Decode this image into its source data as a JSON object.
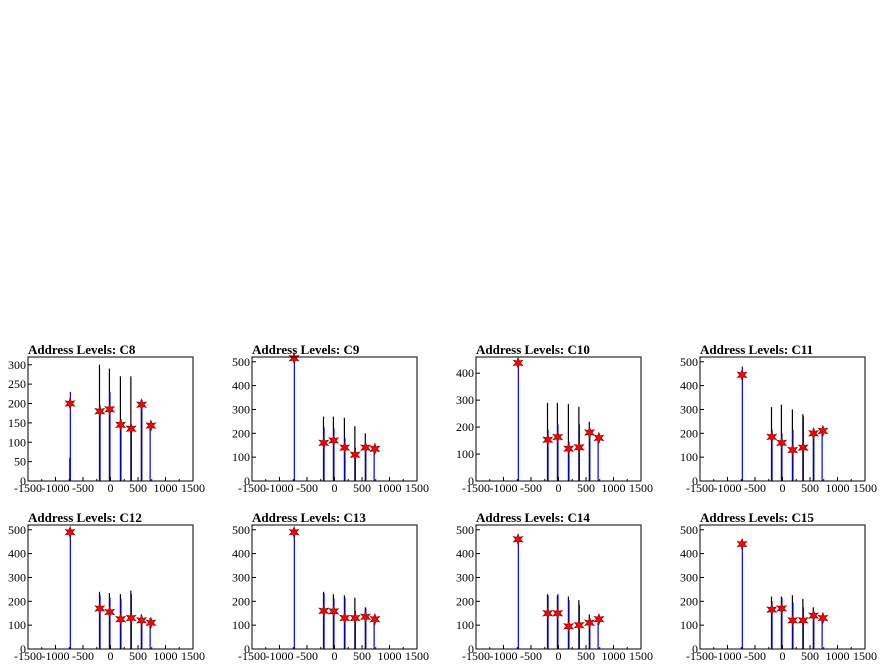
{
  "chart_data": [
    {
      "type": "bar",
      "title": "Address Levels: C8",
      "xlim": [
        -1500,
        1500
      ],
      "ylim": [
        0,
        320
      ],
      "xticks": [
        -1500,
        -1000,
        -500,
        0,
        500,
        1000,
        1500
      ],
      "xtick_labels": [
        "-1500",
        "-1000",
        "-500",
        "0",
        "500",
        "1000",
        "1500"
      ],
      "yticks": [
        0,
        50,
        100,
        150,
        200,
        250,
        300
      ],
      "ytick_labels": [
        "0",
        "50",
        "100",
        "150",
        "200",
        "250",
        "300"
      ],
      "series": [
        {
          "type": "bar",
          "color": "#000000",
          "x": [
            -740,
            -200,
            -20,
            180,
            370,
            560
          ],
          "values": [
            60,
            300,
            290,
            270,
            270,
            210
          ]
        },
        {
          "type": "bar",
          "color": "#0000ff",
          "x": [
            -730,
            -190,
            -10,
            190,
            380,
            570,
            720
          ],
          "values": [
            230,
            195,
            230,
            160,
            140,
            210,
            145
          ]
        },
        {
          "type": "scatter",
          "color": "#ff0000",
          "marker": "star",
          "x": [
            -735,
            -195,
            -15,
            185,
            375,
            565,
            735
          ],
          "values": [
            200,
            180,
            185,
            145,
            135,
            197,
            143
          ]
        }
      ]
    },
    {
      "type": "bar",
      "title": "Address Levels: C9",
      "xlim": [
        -1500,
        1500
      ],
      "ylim": [
        0,
        520
      ],
      "xticks": [
        -1500,
        -1000,
        -500,
        0,
        500,
        1000,
        1500
      ],
      "xtick_labels": [
        "-1500",
        "-1000",
        "-500",
        "0",
        "500",
        "1000",
        "1500"
      ],
      "yticks": [
        0,
        100,
        200,
        300,
        400,
        500
      ],
      "ytick_labels": [
        "0",
        "100",
        "200",
        "300",
        "400",
        "500"
      ],
      "series": [
        {
          "type": "bar",
          "color": "#000000",
          "x": [
            -200,
            -20,
            180,
            370,
            560
          ],
          "values": [
            270,
            270,
            265,
            230,
            200
          ]
        },
        {
          "type": "bar",
          "color": "#0000ff",
          "x": [
            -730,
            -190,
            -10,
            190,
            380,
            570,
            720
          ],
          "values": [
            520,
            225,
            220,
            180,
            140,
            150,
            140
          ]
        },
        {
          "type": "scatter",
          "color": "#ff0000",
          "marker": "star",
          "x": [
            -735,
            -195,
            -15,
            185,
            375,
            565,
            735
          ],
          "values": [
            515,
            160,
            170,
            140,
            110,
            140,
            135
          ]
        }
      ]
    },
    {
      "type": "bar",
      "title": "Address Levels: C10",
      "xlim": [
        -1500,
        1500
      ],
      "ylim": [
        0,
        460
      ],
      "xticks": [
        -1500,
        -1000,
        -500,
        0,
        500,
        1000,
        1500
      ],
      "xtick_labels": [
        "-1500",
        "-1000",
        "-500",
        "0",
        "500",
        "1000",
        "1500"
      ],
      "yticks": [
        0,
        100,
        200,
        300,
        400
      ],
      "ytick_labels": [
        "0",
        "100",
        "200",
        "300",
        "400"
      ],
      "series": [
        {
          "type": "bar",
          "color": "#000000",
          "x": [
            -200,
            -20,
            180,
            370,
            560
          ],
          "values": [
            290,
            290,
            285,
            275,
            220
          ]
        },
        {
          "type": "bar",
          "color": "#0000ff",
          "x": [
            -730,
            -190,
            -10,
            190,
            380,
            570,
            720
          ],
          "values": [
            450,
            190,
            210,
            145,
            210,
            190,
            165
          ]
        },
        {
          "type": "scatter",
          "color": "#ff0000",
          "marker": "star",
          "x": [
            -735,
            -195,
            -15,
            185,
            375,
            565,
            735
          ],
          "values": [
            438,
            153,
            163,
            120,
            125,
            180,
            160
          ]
        }
      ]
    },
    {
      "type": "bar",
      "title": "Address Levels: C11",
      "xlim": [
        -1500,
        1500
      ],
      "ylim": [
        0,
        520
      ],
      "xticks": [
        -1500,
        -1000,
        -500,
        0,
        500,
        1000,
        1500
      ],
      "xtick_labels": [
        "-1500",
        "-1000",
        "-500",
        "0",
        "500",
        "1000",
        "1500"
      ],
      "yticks": [
        0,
        100,
        200,
        300,
        400,
        500
      ],
      "ytick_labels": [
        "0",
        "100",
        "200",
        "300",
        "400",
        "500"
      ],
      "series": [
        {
          "type": "bar",
          "color": "#000000",
          "x": [
            -200,
            -20,
            180,
            370,
            560
          ],
          "values": [
            310,
            320,
            300,
            280,
            210
          ]
        },
        {
          "type": "bar",
          "color": "#0000ff",
          "x": [
            -730,
            -190,
            -10,
            190,
            380,
            570,
            720
          ],
          "values": [
            480,
            215,
            200,
            215,
            270,
            220,
            210
          ]
        },
        {
          "type": "scatter",
          "color": "#ff0000",
          "marker": "star",
          "x": [
            -735,
            -195,
            -15,
            185,
            375,
            565,
            735
          ],
          "values": [
            445,
            185,
            160,
            130,
            140,
            200,
            210
          ]
        }
      ]
    },
    {
      "type": "bar",
      "title": "Address Levels: C12",
      "xlim": [
        -1500,
        1500
      ],
      "ylim": [
        0,
        520
      ],
      "xticks": [
        -1500,
        -1000,
        -500,
        0,
        500,
        1000,
        1500
      ],
      "xtick_labels": [
        "-1500",
        "-1000",
        "-500",
        "0",
        "500",
        "1000",
        "1500"
      ],
      "yticks": [
        0,
        100,
        200,
        300,
        400,
        500
      ],
      "ytick_labels": [
        "0",
        "100",
        "200",
        "300",
        "400",
        "500"
      ],
      "series": [
        {
          "type": "bar",
          "color": "#000000",
          "x": [
            -200,
            -20,
            180,
            370,
            560
          ],
          "values": [
            240,
            235,
            230,
            245,
            145
          ]
        },
        {
          "type": "bar",
          "color": "#0000ff",
          "x": [
            -730,
            -190,
            -10,
            190,
            380,
            570,
            720
          ],
          "values": [
            500,
            225,
            215,
            210,
            230,
            135,
            130
          ]
        },
        {
          "type": "scatter",
          "color": "#ff0000",
          "marker": "star",
          "x": [
            -735,
            -195,
            -15,
            185,
            375,
            565,
            735
          ],
          "values": [
            490,
            170,
            155,
            125,
            130,
            120,
            110
          ]
        }
      ]
    },
    {
      "type": "bar",
      "title": "Address Levels: C13",
      "xlim": [
        -1500,
        1500
      ],
      "ylim": [
        0,
        520
      ],
      "xticks": [
        -1500,
        -1000,
        -500,
        0,
        500,
        1000,
        1500
      ],
      "xtick_labels": [
        "-1500",
        "-1000",
        "-500",
        "0",
        "500",
        "1000",
        "1500"
      ],
      "yticks": [
        0,
        100,
        200,
        300,
        400,
        500
      ],
      "ytick_labels": [
        "0",
        "100",
        "200",
        "300",
        "400",
        "500"
      ],
      "series": [
        {
          "type": "bar",
          "color": "#000000",
          "x": [
            -200,
            -20,
            180,
            370,
            560
          ],
          "values": [
            240,
            230,
            225,
            215,
            175
          ]
        },
        {
          "type": "bar",
          "color": "#0000ff",
          "x": [
            -730,
            -190,
            -10,
            190,
            380,
            570,
            720
          ],
          "values": [
            500,
            235,
            210,
            215,
            160,
            170,
            140
          ]
        },
        {
          "type": "scatter",
          "color": "#ff0000",
          "marker": "star",
          "x": [
            -735,
            -195,
            -15,
            185,
            375,
            565,
            735
          ],
          "values": [
            490,
            160,
            158,
            130,
            130,
            135,
            125
          ]
        }
      ]
    },
    {
      "type": "bar",
      "title": "Address Levels: C14",
      "xlim": [
        -1500,
        1500
      ],
      "ylim": [
        0,
        520
      ],
      "xticks": [
        -1500,
        -1000,
        -500,
        0,
        500,
        1000,
        1500
      ],
      "xtick_labels": [
        "-1500",
        "-1000",
        "-500",
        "0",
        "500",
        "1000",
        "1500"
      ],
      "yticks": [
        0,
        100,
        200,
        300,
        400,
        500
      ],
      "ytick_labels": [
        "0",
        "100",
        "200",
        "300",
        "400",
        "500"
      ],
      "series": [
        {
          "type": "bar",
          "color": "#000000",
          "x": [
            -200,
            -20,
            180,
            370,
            560
          ],
          "values": [
            230,
            225,
            220,
            205,
            145
          ]
        },
        {
          "type": "bar",
          "color": "#0000ff",
          "x": [
            -730,
            -190,
            -10,
            190,
            380,
            570,
            720
          ],
          "values": [
            470,
            225,
            230,
            205,
            185,
            130,
            130
          ]
        },
        {
          "type": "scatter",
          "color": "#ff0000",
          "marker": "star",
          "x": [
            -735,
            -195,
            -15,
            185,
            375,
            565,
            735
          ],
          "values": [
            460,
            150,
            150,
            95,
            100,
            110,
            125
          ]
        }
      ]
    },
    {
      "type": "bar",
      "title": "Address Levels: C15",
      "xlim": [
        -1500,
        1500
      ],
      "ylim": [
        0,
        520
      ],
      "xticks": [
        -1500,
        -1000,
        -500,
        0,
        500,
        1000,
        1500
      ],
      "xtick_labels": [
        "-1500",
        "-1000",
        "-500",
        "0",
        "500",
        "1000",
        "1500"
      ],
      "yticks": [
        0,
        100,
        200,
        300,
        400,
        500
      ],
      "ytick_labels": [
        "0",
        "100",
        "200",
        "300",
        "400",
        "500"
      ],
      "series": [
        {
          "type": "bar",
          "color": "#000000",
          "x": [
            -200,
            -20,
            180,
            370,
            560
          ],
          "values": [
            220,
            220,
            225,
            210,
            175
          ]
        },
        {
          "type": "bar",
          "color": "#0000ff",
          "x": [
            -730,
            -190,
            -10,
            190,
            380,
            570,
            720
          ],
          "values": [
            460,
            200,
            215,
            195,
            175,
            150,
            135
          ]
        },
        {
          "type": "scatter",
          "color": "#ff0000",
          "marker": "star",
          "x": [
            -735,
            -195,
            -15,
            185,
            375,
            565,
            735
          ],
          "values": [
            440,
            165,
            170,
            120,
            120,
            140,
            130
          ]
        }
      ]
    }
  ]
}
